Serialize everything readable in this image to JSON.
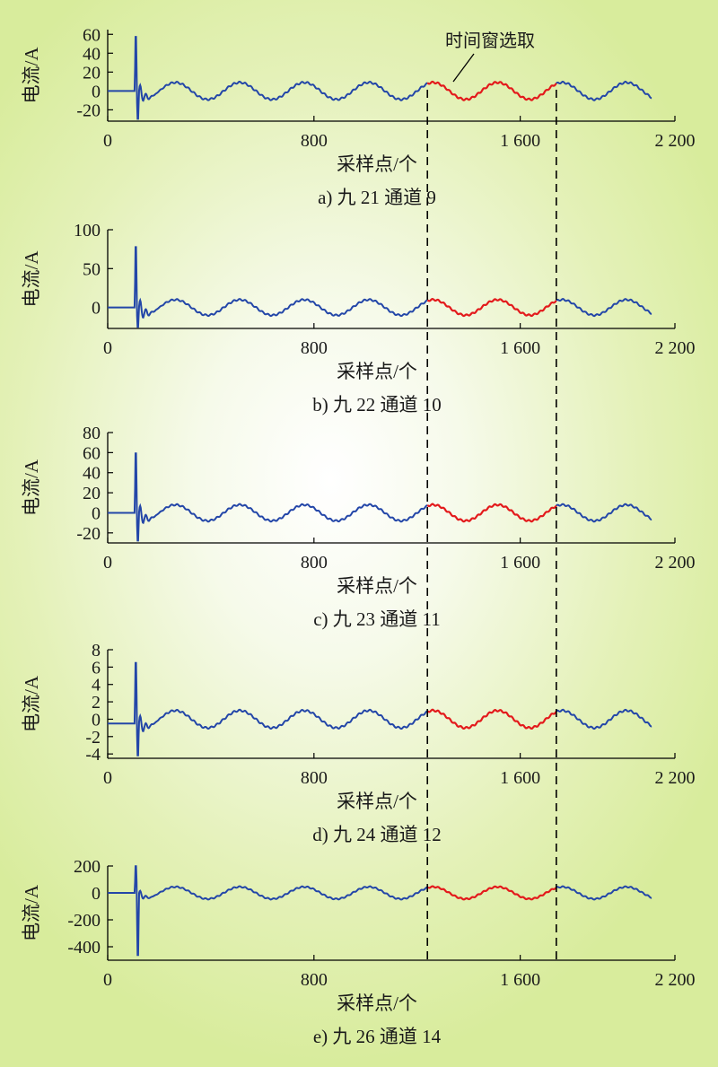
{
  "chart_data": [
    {
      "type": "line",
      "caption": "a) 九 21 通道 9",
      "xlabel": "采样点/个",
      "ylabel": "电流/A",
      "xlim": [
        0,
        2200
      ],
      "ylim": [
        -32,
        65
      ],
      "xticks": [
        "0",
        "800",
        "1 600",
        "2 200"
      ],
      "xtick_values": [
        0,
        800,
        1600,
        2200
      ],
      "yticks": [
        60,
        40,
        20,
        0,
        -20
      ],
      "signal": {
        "pre_fault_level": 0,
        "fault_start_sample": 105,
        "fault_peak": 62,
        "fault_trough": -32,
        "periodic_amplitude": 9,
        "period_samples": 250,
        "end_sample": 2110
      },
      "highlight_window": {
        "start": 1240,
        "end": 1740,
        "color": "#e31a1c"
      },
      "series_color": "#2346a8"
    },
    {
      "type": "line",
      "caption": "b) 九 22 通道 10",
      "xlabel": "采样点/个",
      "ylabel": "电流/A",
      "xlim": [
        0,
        2200
      ],
      "ylim": [
        -27,
        100
      ],
      "xticks": [
        "0",
        "800",
        "1 600",
        "2 200"
      ],
      "xtick_values": [
        0,
        800,
        1600,
        2200
      ],
      "yticks": [
        100,
        50,
        0
      ],
      "signal": {
        "pre_fault_level": 0,
        "fault_start_sample": 105,
        "fault_peak": 84,
        "fault_trough": -27,
        "periodic_amplitude": 10,
        "period_samples": 250,
        "end_sample": 2110
      },
      "highlight_window": {
        "start": 1240,
        "end": 1740,
        "color": "#e31a1c"
      },
      "series_color": "#2346a8"
    },
    {
      "type": "line",
      "caption": "c) 九 23 通道 11",
      "xlabel": "采样点/个",
      "ylabel": "电流/A",
      "xlim": [
        0,
        2200
      ],
      "ylim": [
        -30,
        80
      ],
      "xticks": [
        "0",
        "800",
        "1 600",
        "2 200"
      ],
      "xtick_values": [
        0,
        800,
        1600,
        2200
      ],
      "yticks": [
        80,
        60,
        40,
        20,
        0,
        -20
      ],
      "signal": {
        "pre_fault_level": 0,
        "fault_start_sample": 105,
        "fault_peak": 64,
        "fault_trough": -30,
        "periodic_amplitude": 8,
        "period_samples": 250,
        "end_sample": 2110
      },
      "highlight_window": {
        "start": 1240,
        "end": 1740,
        "color": "#e31a1c"
      },
      "series_color": "#2346a8"
    },
    {
      "type": "line",
      "caption": "d) 九 24 通道 12",
      "xlabel": "采样点/个",
      "ylabel": "电流/A",
      "xlim": [
        0,
        2200
      ],
      "ylim": [
        -4.5,
        8
      ],
      "xticks": [
        "0",
        "800",
        "1 600",
        "2 200"
      ],
      "xtick_values": [
        0,
        800,
        1600,
        2200
      ],
      "yticks": [
        8,
        6,
        4,
        2,
        0,
        -2,
        -4
      ],
      "signal": {
        "pre_fault_level": -0.5,
        "fault_start_sample": 105,
        "fault_peak": 7,
        "fault_trough": -4.5,
        "periodic_amplitude": 1,
        "period_samples": 250,
        "end_sample": 2110
      },
      "highlight_window": {
        "start": 1240,
        "end": 1740,
        "color": "#e31a1c"
      },
      "series_color": "#2346a8"
    },
    {
      "type": "line",
      "caption": "e) 九 26 通道 14",
      "xlabel": "采样点/个",
      "ylabel": "电流/A",
      "xlim": [
        0,
        2200
      ],
      "ylim": [
        -500,
        200
      ],
      "xticks": [
        "0",
        "800",
        "1 600",
        "2 200"
      ],
      "xtick_values": [
        0,
        800,
        1600,
        2200
      ],
      "yticks": [
        200,
        0,
        -200,
        -400
      ],
      "signal": {
        "pre_fault_level": 0,
        "fault_start_sample": 105,
        "fault_peak": 215,
        "fault_trough": -500,
        "periodic_amplitude": 45,
        "period_samples": 250,
        "end_sample": 2110
      },
      "highlight_window": {
        "start": 1240,
        "end": 1740,
        "color": "#e31a1c"
      },
      "series_color": "#2346a8"
    }
  ],
  "annotation": {
    "label": "时间窗选取",
    "window_start_sample": 1240,
    "window_end_sample": 1740
  }
}
